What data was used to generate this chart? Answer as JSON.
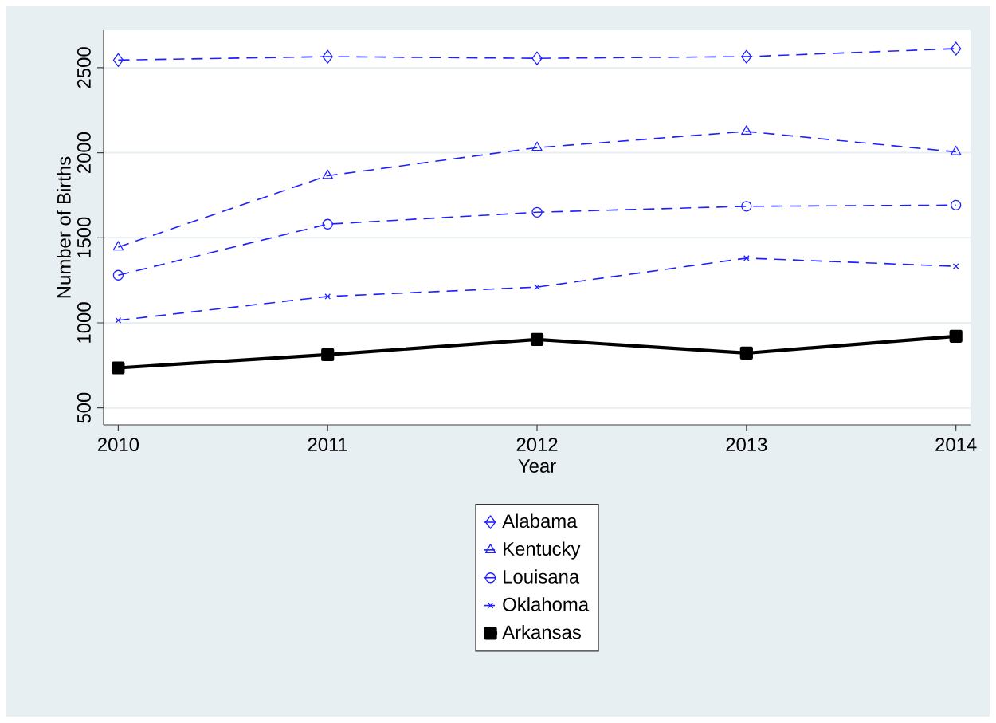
{
  "chart_data": {
    "type": "line",
    "xlabel": "Year",
    "ylabel": "Number of Births",
    "x": [
      2010,
      2011,
      2012,
      2013,
      2014
    ],
    "xlim": [
      2009.93,
      2014.07
    ],
    "ylim": [
      400,
      2720
    ],
    "xticks": [
      2010,
      2011,
      2012,
      2013,
      2014
    ],
    "yticks": [
      500,
      1000,
      1500,
      2000,
      2500
    ],
    "grid": "y",
    "legend": "bottom",
    "series": [
      {
        "name": "Alabama",
        "color": "#1f1fff",
        "marker": "diamond",
        "line_style": "dashed",
        "values": [
          2545,
          2565,
          2555,
          2565,
          2612
        ]
      },
      {
        "name": "Kentucky",
        "color": "#1f1fff",
        "marker": "triangle",
        "line_style": "dashed",
        "values": [
          1445,
          1865,
          2030,
          2125,
          2005
        ]
      },
      {
        "name": "Louisana",
        "color": "#1f1fff",
        "marker": "circle",
        "line_style": "dashed",
        "values": [
          1280,
          1580,
          1650,
          1685,
          1692
        ]
      },
      {
        "name": "Oklahoma",
        "color": "#1f1fff",
        "marker": "cross",
        "line_style": "dashed",
        "values": [
          1015,
          1155,
          1210,
          1380,
          1332
        ]
      },
      {
        "name": "Arkansas",
        "color": "#000000",
        "marker": "square",
        "line_style": "solid",
        "values": [
          735,
          813,
          902,
          822,
          921
        ]
      }
    ]
  }
}
